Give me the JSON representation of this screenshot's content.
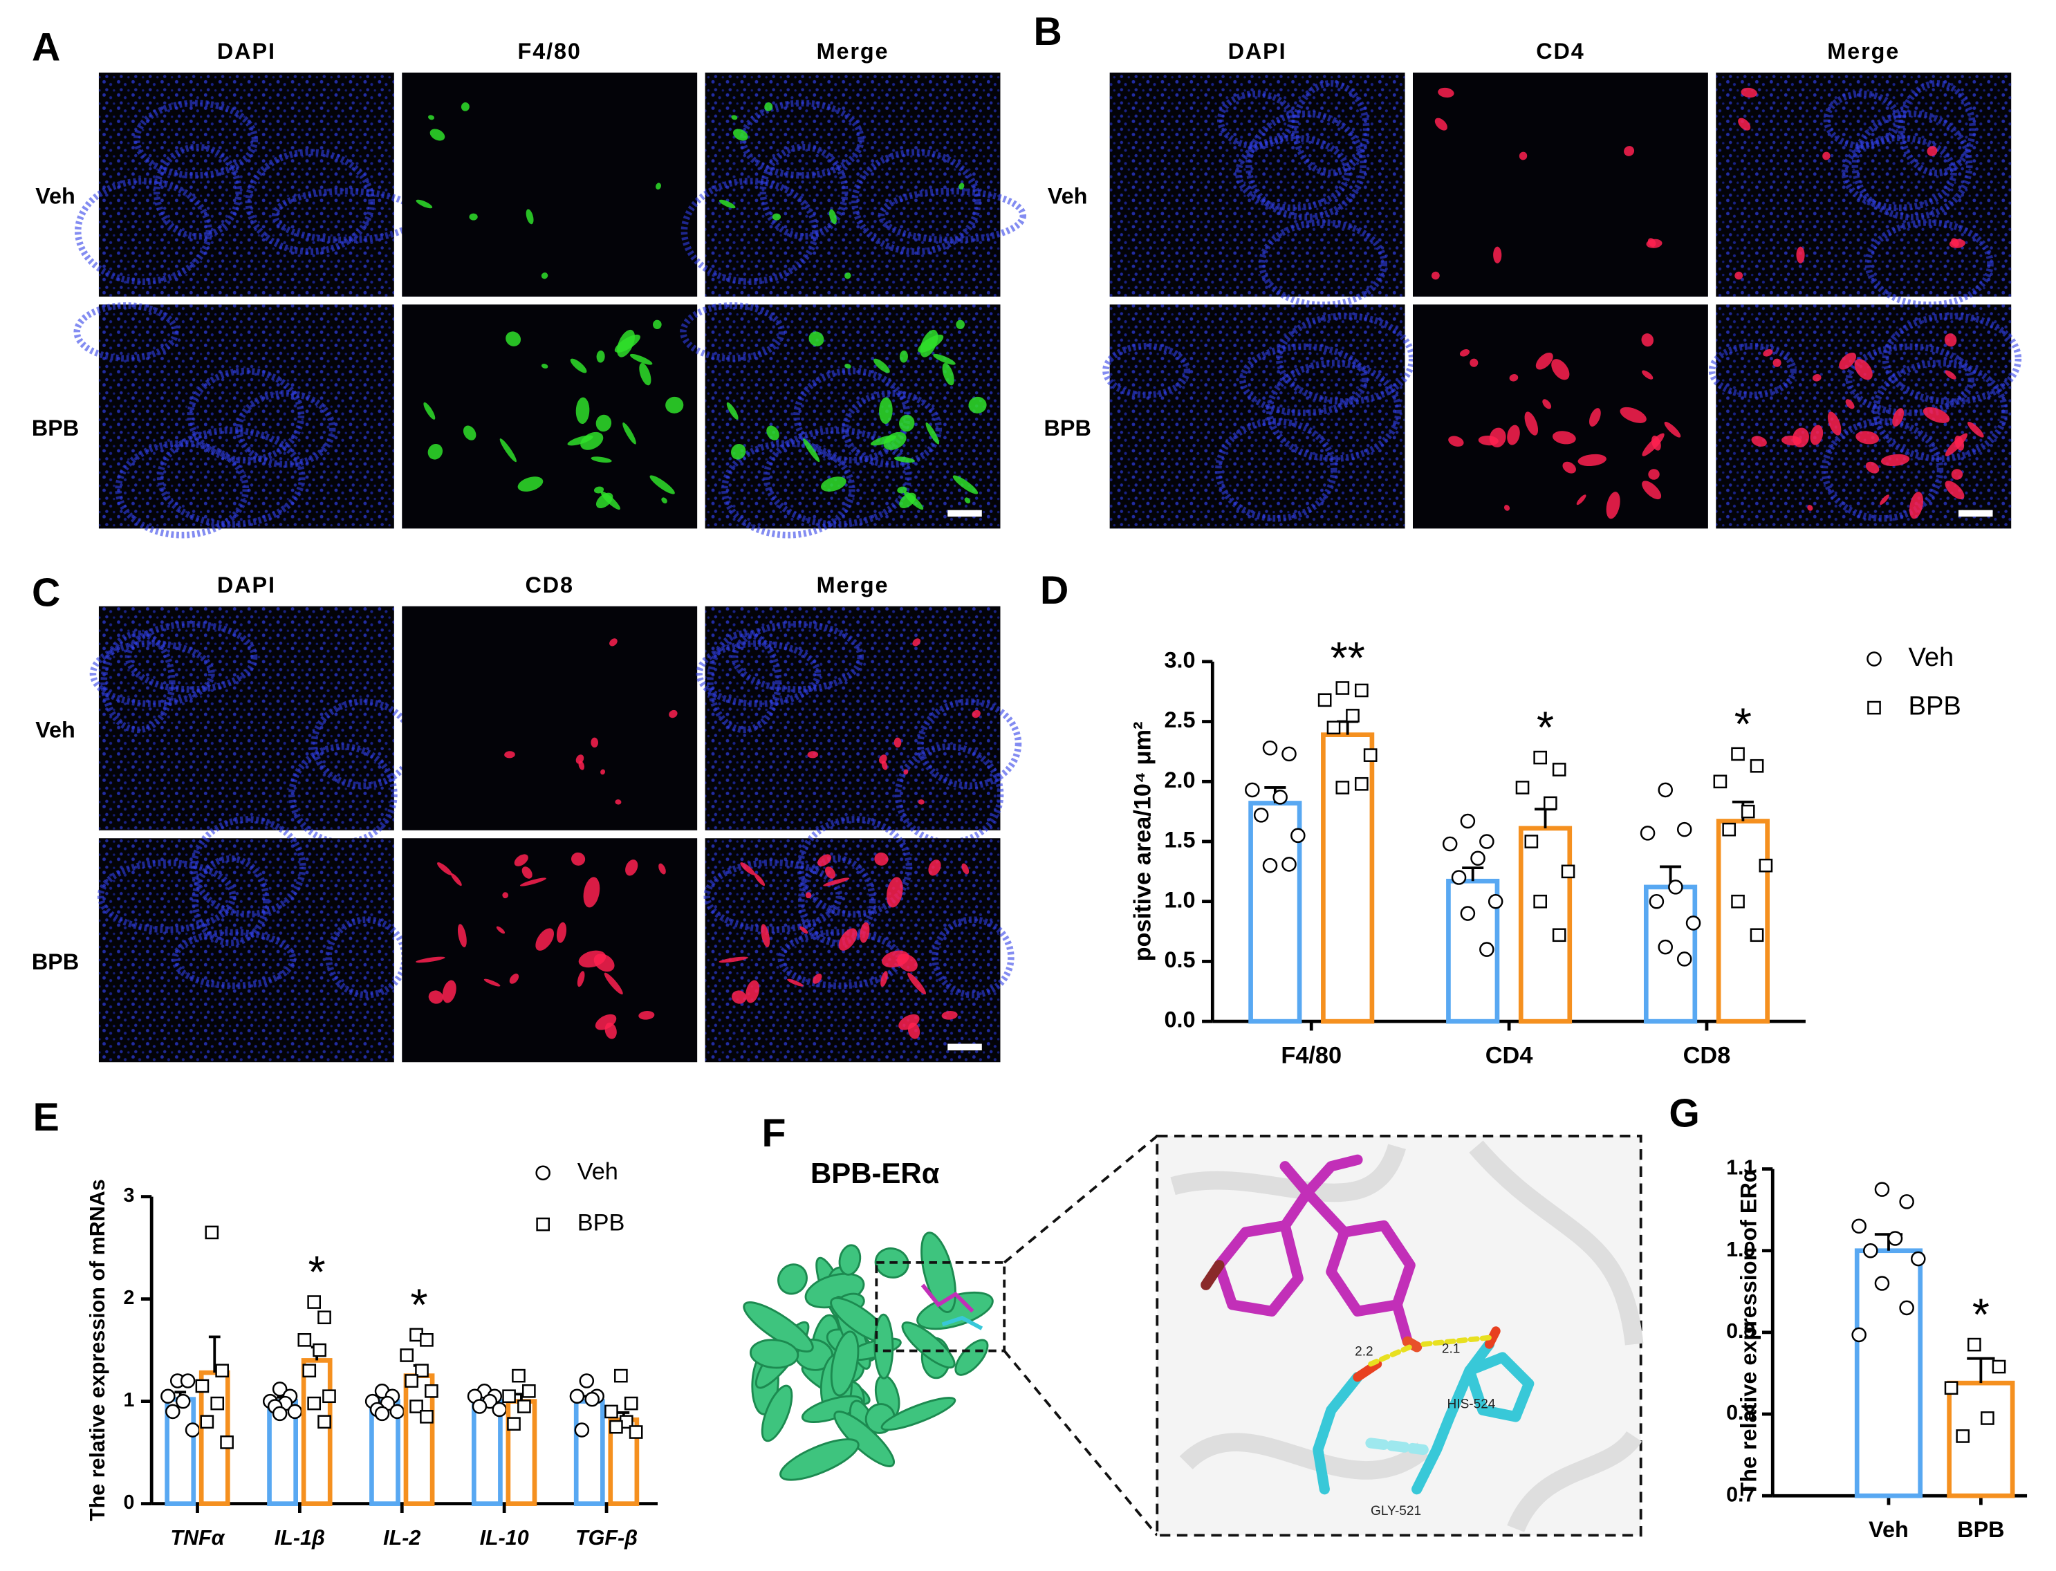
{
  "panels": [
    {
      "label": "A",
      "columns": [
        "DAPI",
        "F4/80",
        "Merge"
      ],
      "rows": [
        "Veh",
        "BPB"
      ],
      "stain_color": "#2fe02a"
    },
    {
      "label": "B",
      "columns": [
        "DAPI",
        "CD4",
        "Merge"
      ],
      "rows": [
        "Veh",
        "BPB"
      ],
      "stain_color": "#ff2150"
    },
    {
      "label": "C",
      "columns": [
        "DAPI",
        "CD8",
        "Merge"
      ],
      "rows": [
        "Veh",
        "BPB"
      ],
      "stain_color": "#ff2150"
    }
  ],
  "docking": {
    "panel": "F",
    "title": "BPB-ERα",
    "residues": [
      "GLY-521",
      "HIS-524"
    ],
    "distances": [
      "2.2",
      "2.1"
    ]
  },
  "chart_data": [
    {
      "type": "bar",
      "panel": "D",
      "y_label": "positive area/10⁴ μm²",
      "categories": [
        "F4/80",
        "CD4",
        "CD8"
      ],
      "ylim": [
        0,
        3
      ],
      "yticks": [
        {
          "value": 0,
          "label": "0.0"
        },
        {
          "value": 0.5,
          "label": "0.5"
        },
        {
          "value": 1,
          "label": "1.0"
        },
        {
          "value": 1.5,
          "label": "1.5"
        },
        {
          "value": 2,
          "label": "2.0"
        },
        {
          "value": 2.5,
          "label": "2.5"
        },
        {
          "value": 3,
          "label": "3.0"
        }
      ],
      "legend": "upper right",
      "series": [
        {
          "name": "Veh",
          "color": "#58a8f2",
          "marker": "circle",
          "values": [
            1.82,
            1.17,
            1.12
          ],
          "errors": [
            0.13,
            0.11,
            0.17
          ],
          "points": [
            [
              2.28,
              2.23,
              1.93,
              1.87,
              1.72,
              1.55,
              1.3,
              1.31
            ],
            [
              1.67,
              1.5,
              1.48,
              1.36,
              1.2,
              1.0,
              0.9,
              0.6
            ],
            [
              1.93,
              1.6,
              1.57,
              1.12,
              1.0,
              0.82,
              0.62,
              0.52
            ]
          ]
        },
        {
          "name": "BPB",
          "color": "#f5901f",
          "marker": "square",
          "values": [
            2.39,
            1.61,
            1.67
          ],
          "errors": [
            0.11,
            0.16,
            0.16
          ],
          "points": [
            [
              2.78,
              2.76,
              2.68,
              2.55,
              2.45,
              2.22,
              1.95,
              1.98
            ],
            [
              2.2,
              2.1,
              1.95,
              1.82,
              1.5,
              1.25,
              1.0,
              0.72
            ],
            [
              2.23,
              2.13,
              2.0,
              1.75,
              1.6,
              1.3,
              1.0,
              0.72
            ]
          ],
          "significance": [
            "**",
            "*",
            "*"
          ]
        }
      ]
    },
    {
      "type": "bar",
      "panel": "E",
      "y_label": "The relative expression of mRNAs",
      "categories": [
        "TNFα",
        "IL-1β",
        "IL-2",
        "IL-10",
        "TGF-β"
      ],
      "category_style": "italic",
      "ylim": [
        0,
        3
      ],
      "yticks": [
        0,
        1,
        2,
        3
      ],
      "legend": "upper right",
      "series": [
        {
          "name": "Veh",
          "color": "#58a8f2",
          "marker": "circle",
          "values": [
            1.02,
            1.0,
            1.0,
            1.0,
            1.0
          ],
          "errors": [
            0.07,
            0.04,
            0.04,
            0.04,
            0.05
          ],
          "points": [
            [
              1.2,
              1.2,
              1.05,
              1.0,
              0.9,
              0.72
            ],
            [
              1.12,
              1.05,
              1.0,
              0.98,
              0.95,
              0.9,
              0.88
            ],
            [
              1.1,
              1.05,
              1.0,
              0.98,
              0.92,
              0.9,
              0.88
            ],
            [
              1.1,
              1.05,
              1.05,
              1.0,
              0.95,
              0.92
            ],
            [
              1.2,
              1.05,
              1.05,
              1.02,
              0.72
            ]
          ]
        },
        {
          "name": "BPB",
          "color": "#f5901f",
          "marker": "square",
          "values": [
            1.28,
            1.4,
            1.25,
            1.0,
            0.82
          ],
          "errors": [
            0.35,
            0.13,
            0.1,
            0.07,
            0.07
          ],
          "points": [
            [
              2.65,
              1.3,
              1.15,
              0.98,
              0.8,
              0.6
            ],
            [
              1.97,
              1.82,
              1.6,
              1.5,
              1.3,
              1.05,
              0.98,
              0.8
            ],
            [
              1.65,
              1.6,
              1.45,
              1.3,
              1.2,
              1.1,
              0.95,
              0.85
            ],
            [
              1.25,
              1.1,
              1.05,
              0.95,
              0.78
            ],
            [
              1.25,
              0.98,
              0.9,
              0.8,
              0.75,
              0.7
            ]
          ],
          "significance": [
            null,
            "*",
            "*",
            null,
            null
          ]
        }
      ]
    },
    {
      "type": "bar",
      "panel": "G",
      "y_label": "The relative expression of ERα",
      "categories": [
        "Veh",
        "BPB"
      ],
      "ylim": [
        0.7,
        1.1
      ],
      "yticks": [
        {
          "value": 0.7,
          "label": "0.7"
        },
        {
          "value": 0.8,
          "label": "0.8"
        },
        {
          "value": 0.9,
          "label": "0.9"
        },
        {
          "value": 1.0,
          "label": "1.0"
        },
        {
          "value": 1.1,
          "label": "1.1"
        }
      ],
      "series": [
        {
          "colors": [
            "#58a8f2",
            "#f5901f"
          ],
          "markers": [
            "circle",
            "square"
          ],
          "values": [
            1.0,
            0.838
          ],
          "errors": [
            0.02,
            0.03
          ],
          "points": [
            [
              1.075,
              1.06,
              1.03,
              1.015,
              1.0,
              0.99,
              0.96,
              0.93,
              0.897
            ],
            [
              0.885,
              0.858,
              0.832,
              0.795,
              0.773
            ]
          ],
          "significance": [
            null,
            "*"
          ]
        }
      ]
    }
  ]
}
